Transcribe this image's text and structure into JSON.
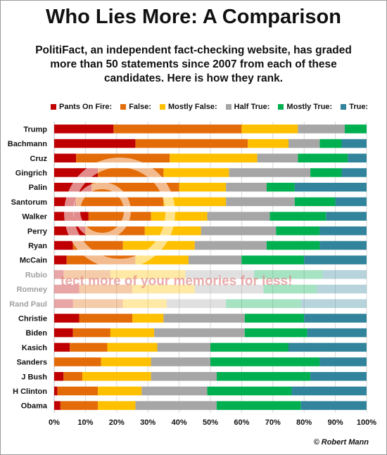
{
  "chart_data": {
    "type": "bar",
    "orientation": "horizontal",
    "stacked": true,
    "normalized": true,
    "title": "Who Lies More: A Comparison",
    "subtitle": "PolitiFact,  an independent fact-checking website, has graded more than 50 statements since 2007 from each of these candidates. Here is how they rank.",
    "xlim": [
      0,
      100
    ],
    "xticks": [
      "0%",
      "10%",
      "20%",
      "30%",
      "40%",
      "50%",
      "60%",
      "70%",
      "80%",
      "90%",
      "100%"
    ],
    "grid": true,
    "legend_position": "top",
    "credit": "© Robert Mann",
    "categories": [
      "Trump",
      "Bachmann",
      "Cruz",
      "Gingrich",
      "Palin",
      "Santorum",
      "Walker",
      "Perry",
      "Ryan",
      "McCain",
      "Rubio",
      "Romney",
      "Rand Paul",
      "Christie",
      "Biden",
      "Kasich",
      "Sanders",
      "J Bush",
      "H Clinton",
      "Obama"
    ],
    "faded_categories": [
      "Rubio",
      "Romney",
      "Rand Paul"
    ],
    "series": [
      {
        "name": "Pants On Fire:",
        "color": "#c00000",
        "values": [
          19,
          26,
          7,
          14,
          12,
          7,
          11,
          10,
          6,
          4,
          3,
          8,
          6,
          8,
          6,
          5,
          0,
          3,
          1,
          2
        ]
      },
      {
        "name": "False:",
        "color": "#e36c09",
        "values": [
          41,
          36,
          30,
          21,
          28,
          28,
          20,
          19,
          16,
          22,
          15,
          17,
          16,
          17,
          12,
          12,
          15,
          6,
          13,
          12
        ]
      },
      {
        "name": "Mostly False:",
        "color": "#ffc000",
        "values": [
          18,
          13,
          28,
          21,
          15,
          20,
          18,
          18,
          23,
          17,
          24,
          20,
          14,
          10,
          14,
          16,
          16,
          22,
          14,
          12
        ]
      },
      {
        "name": "Half True:",
        "color": "#a6a6a6",
        "values": [
          15,
          10,
          13,
          26,
          13,
          22,
          20,
          24,
          23,
          17,
          22,
          22,
          19,
          26,
          29,
          17,
          19,
          21,
          21,
          26
        ]
      },
      {
        "name": "Mostly True:",
        "color": "#00b050",
        "values": [
          7,
          7,
          16,
          10,
          9,
          13,
          18,
          14,
          17,
          20,
          22,
          17,
          24,
          19,
          20,
          25,
          35,
          30,
          27,
          27
        ]
      },
      {
        "name": "True:",
        "color": "#31849b",
        "values": [
          0,
          8,
          6,
          8,
          23,
          10,
          13,
          15,
          15,
          20,
          14,
          16,
          21,
          20,
          19,
          25,
          15,
          18,
          24,
          21
        ]
      }
    ],
    "watermark_text": "tect more of your memories for less!"
  }
}
